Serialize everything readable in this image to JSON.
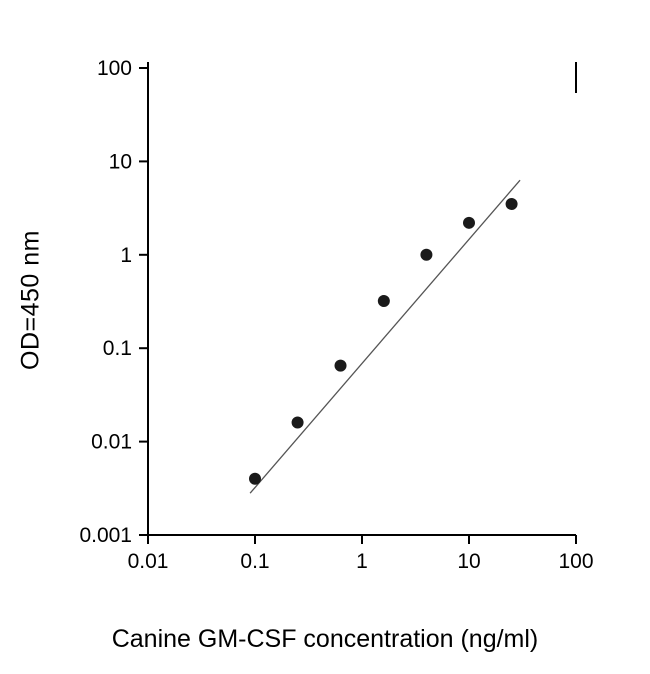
{
  "chart_data": {
    "type": "scatter",
    "title": "",
    "xlabel": "Canine GM-CSF concentration (ng/ml)",
    "ylabel": "OD=450 nm",
    "xscale": "log",
    "yscale": "log",
    "xlim": [
      0.01,
      100
    ],
    "ylim": [
      0.001,
      100
    ],
    "xticks": [
      0.01,
      0.1,
      1,
      10,
      100
    ],
    "yticks": [
      0.001,
      0.01,
      0.1,
      1,
      10,
      100
    ],
    "xtick_labels": [
      "0.01",
      "0.1",
      "1",
      "10",
      "100"
    ],
    "ytick_labels": [
      "0.001",
      "0.01",
      "0.1",
      "1",
      "10",
      "100"
    ],
    "grid": false,
    "legend": null,
    "x": [
      0.1,
      0.25,
      0.63,
      1.6,
      4,
      10,
      25
    ],
    "y": [
      0.004,
      0.016,
      0.065,
      0.32,
      1.0,
      2.2,
      3.5
    ],
    "fit_line": {
      "x": [
        0.09,
        30
      ],
      "y": [
        0.0028,
        6.3
      ]
    },
    "marker": {
      "shape": "circle",
      "color": "#1a1a1a",
      "size": 6
    },
    "line_color": "#555555",
    "axis_color": "#000000"
  }
}
